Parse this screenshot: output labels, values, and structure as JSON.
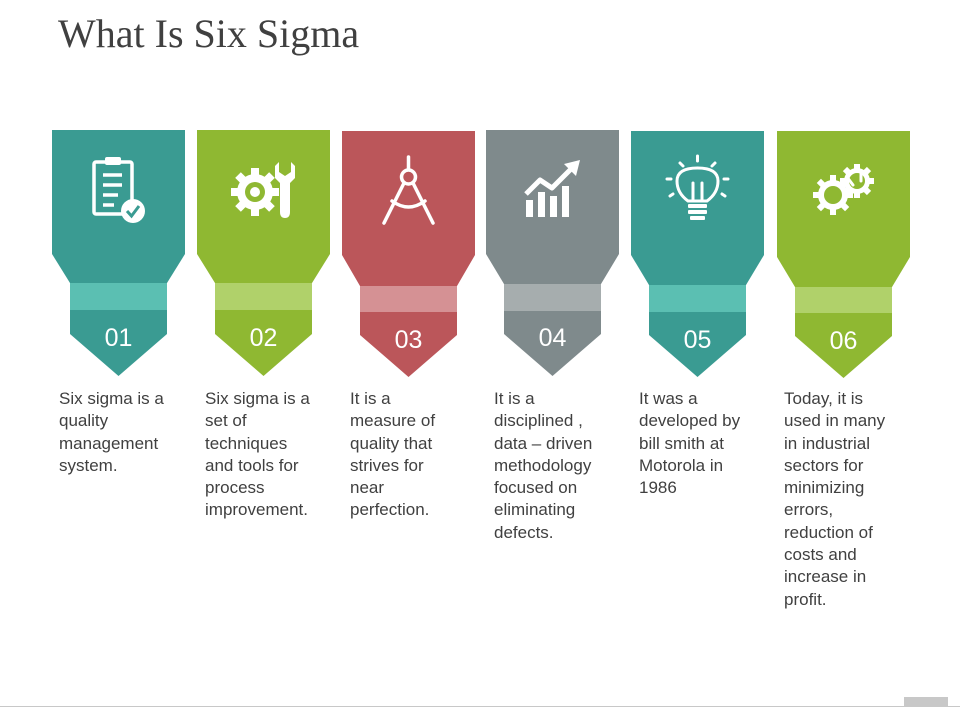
{
  "title": "What Is Six Sigma",
  "steps": [
    {
      "number": "01",
      "icon": "clipboard-check-icon",
      "color_top": "#3a9b92",
      "color_band": "#5bbfb2",
      "text": "Six sigma is a\nquality\nmanagement\nsystem."
    },
    {
      "number": "02",
      "icon": "gear-wrench-icon",
      "color_top": "#8fb832",
      "color_band": "#b0d16a",
      "text": "Six sigma is a\nset of\ntechniques\nand tools for\nprocess\nimprovement."
    },
    {
      "number": "03",
      "icon": "compass-icon",
      "color_top": "#bb565a",
      "color_band": "#d59194",
      "text": "It is a\nmeasure  of\nquality that\nstrives for\nnear\nperfection."
    },
    {
      "number": "04",
      "icon": "bar-chart-arrow-icon",
      "color_top": "#7f8a8c",
      "color_band": "#a6adae",
      "text": "It is a\ndisciplined ,\ndata – driven\nmethodology\nfocused on\neliminating\ndefects."
    },
    {
      "number": "05",
      "icon": "lightbulb-icon",
      "color_top": "#3a9b92",
      "color_band": "#5bbfb2",
      "text": "It was a\ndeveloped by\nbill smith at\nMotorola in\n1986"
    },
    {
      "number": "06",
      "icon": "gears-icon",
      "color_top": "#8fb832",
      "color_band": "#b0d16a",
      "text": "Today, it is\nused in many\nin industrial\nsectors for\nminimizing\nerrors,\nreduction of\ncosts and\nincrease in\nprofit."
    }
  ]
}
